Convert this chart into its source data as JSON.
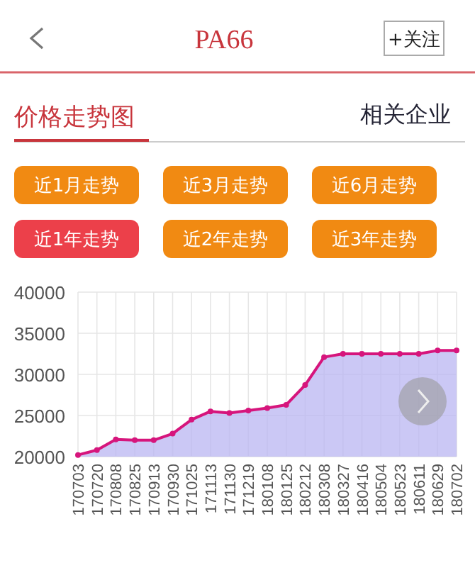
{
  "chart_data": {
    "type": "area",
    "title": "PA66",
    "annotations": [
      "+关注",
      "价格走势图",
      "相关企业",
      "近1月走势",
      "近3月走势",
      "近6月走势",
      "近1年走势",
      "近2年走势",
      "近3年走势"
    ],
    "categories": [
      "170703",
      "170720",
      "170808",
      "170825",
      "170913",
      "170930",
      "171025",
      "171113",
      "171130",
      "171219",
      "180108",
      "180125",
      "180212",
      "180308",
      "180327",
      "180416",
      "180504",
      "180523",
      "180611",
      "180629",
      "180702"
    ],
    "series": [
      {
        "color": "#d6157c",
        "values": [
          20200,
          20800,
          22100,
          22000,
          22000,
          22800,
          24500,
          25500,
          25300,
          25600,
          25900,
          26300,
          28700,
          32100,
          32500,
          32500,
          32500,
          32500,
          32500,
          32900,
          32900
        ]
      }
    ],
    "ylim": [
      20000,
      40000
    ],
    "yticks": [
      20000,
      25000,
      30000,
      35000,
      40000
    ],
    "grid": true,
    "marker": "circle"
  }
}
